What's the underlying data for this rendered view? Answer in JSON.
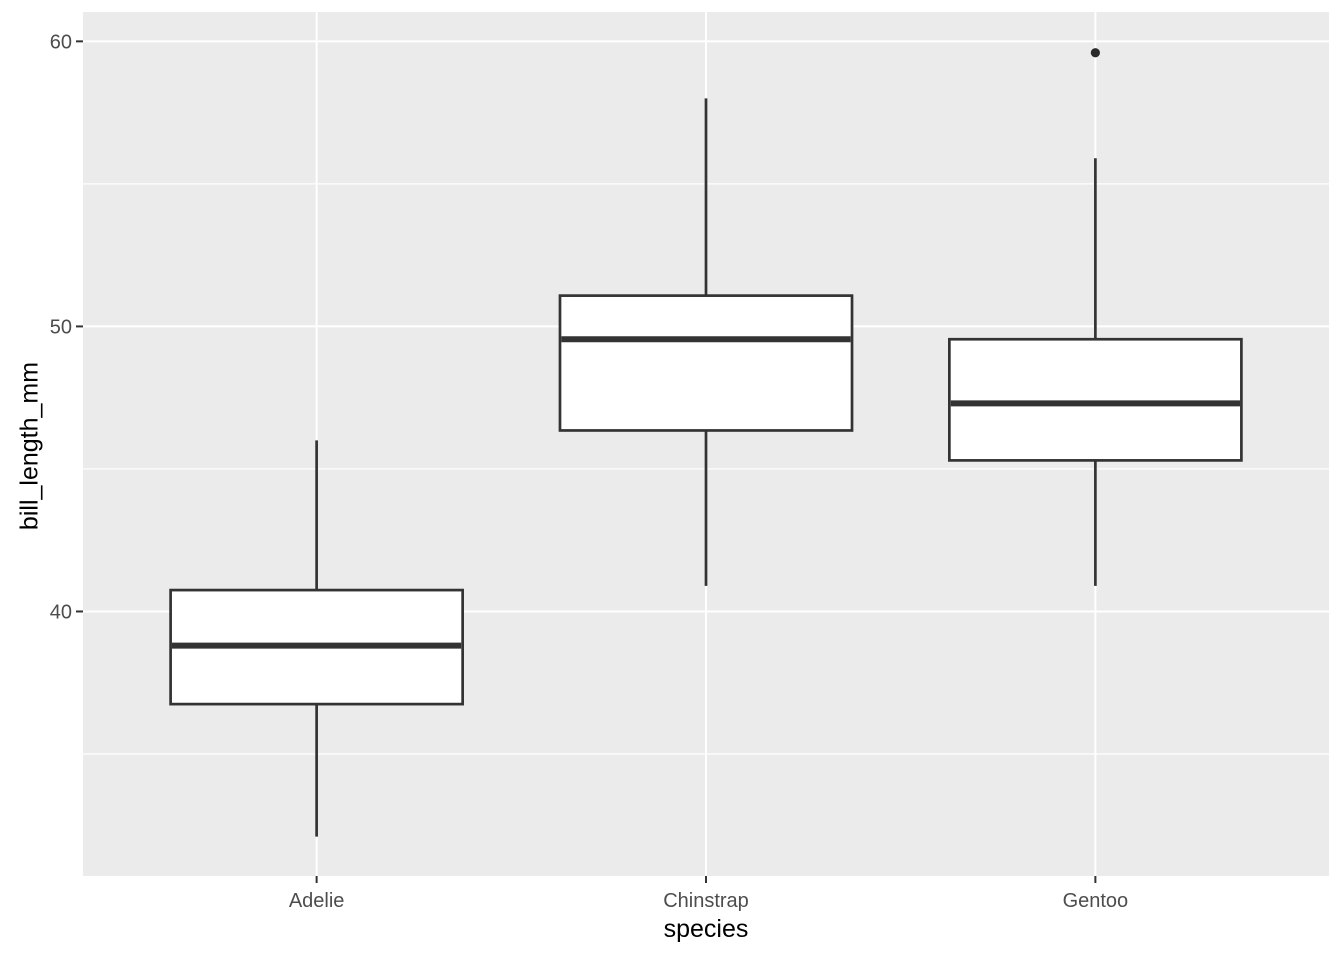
{
  "chart_data": {
    "type": "boxplot",
    "title": "",
    "xlabel": "species",
    "ylabel": "bill_length_mm",
    "legend": "none",
    "grid": "major-and-minor-horizontal, major-vertical",
    "categories": [
      "Adelie",
      "Chinstrap",
      "Gentoo"
    ],
    "series": [
      {
        "category": "Adelie",
        "whisker_low": 32.1,
        "q1": 36.75,
        "median": 38.8,
        "q3": 40.75,
        "whisker_high": 46.0,
        "outliers": []
      },
      {
        "category": "Chinstrap",
        "whisker_low": 40.9,
        "q1": 46.35,
        "median": 49.55,
        "q3": 51.08,
        "whisker_high": 58.0,
        "outliers": []
      },
      {
        "category": "Gentoo",
        "whisker_low": 40.9,
        "q1": 45.3,
        "median": 47.3,
        "q3": 49.55,
        "whisker_high": 55.9,
        "outliers": [
          59.6
        ]
      }
    ],
    "y_axis": {
      "lim": [
        30.72,
        61.03
      ],
      "ticks": [
        40,
        50,
        60
      ],
      "tick_labels": [
        "40",
        "50",
        "60"
      ],
      "minor_ticks": [
        35,
        45,
        55
      ]
    },
    "x_axis": {
      "tick_labels": [
        "Adelie",
        "Chinstrap",
        "Gentoo"
      ]
    },
    "colors": {
      "panel_bg": "#EBEBEB",
      "grid": "#FFFFFF",
      "box_stroke": "#333333",
      "box_fill": "#FFFFFF",
      "outlier": "#2A2A2A",
      "axis_text": "#4D4D4D",
      "axis_title": "#000000",
      "tick_mark": "#333333"
    }
  }
}
